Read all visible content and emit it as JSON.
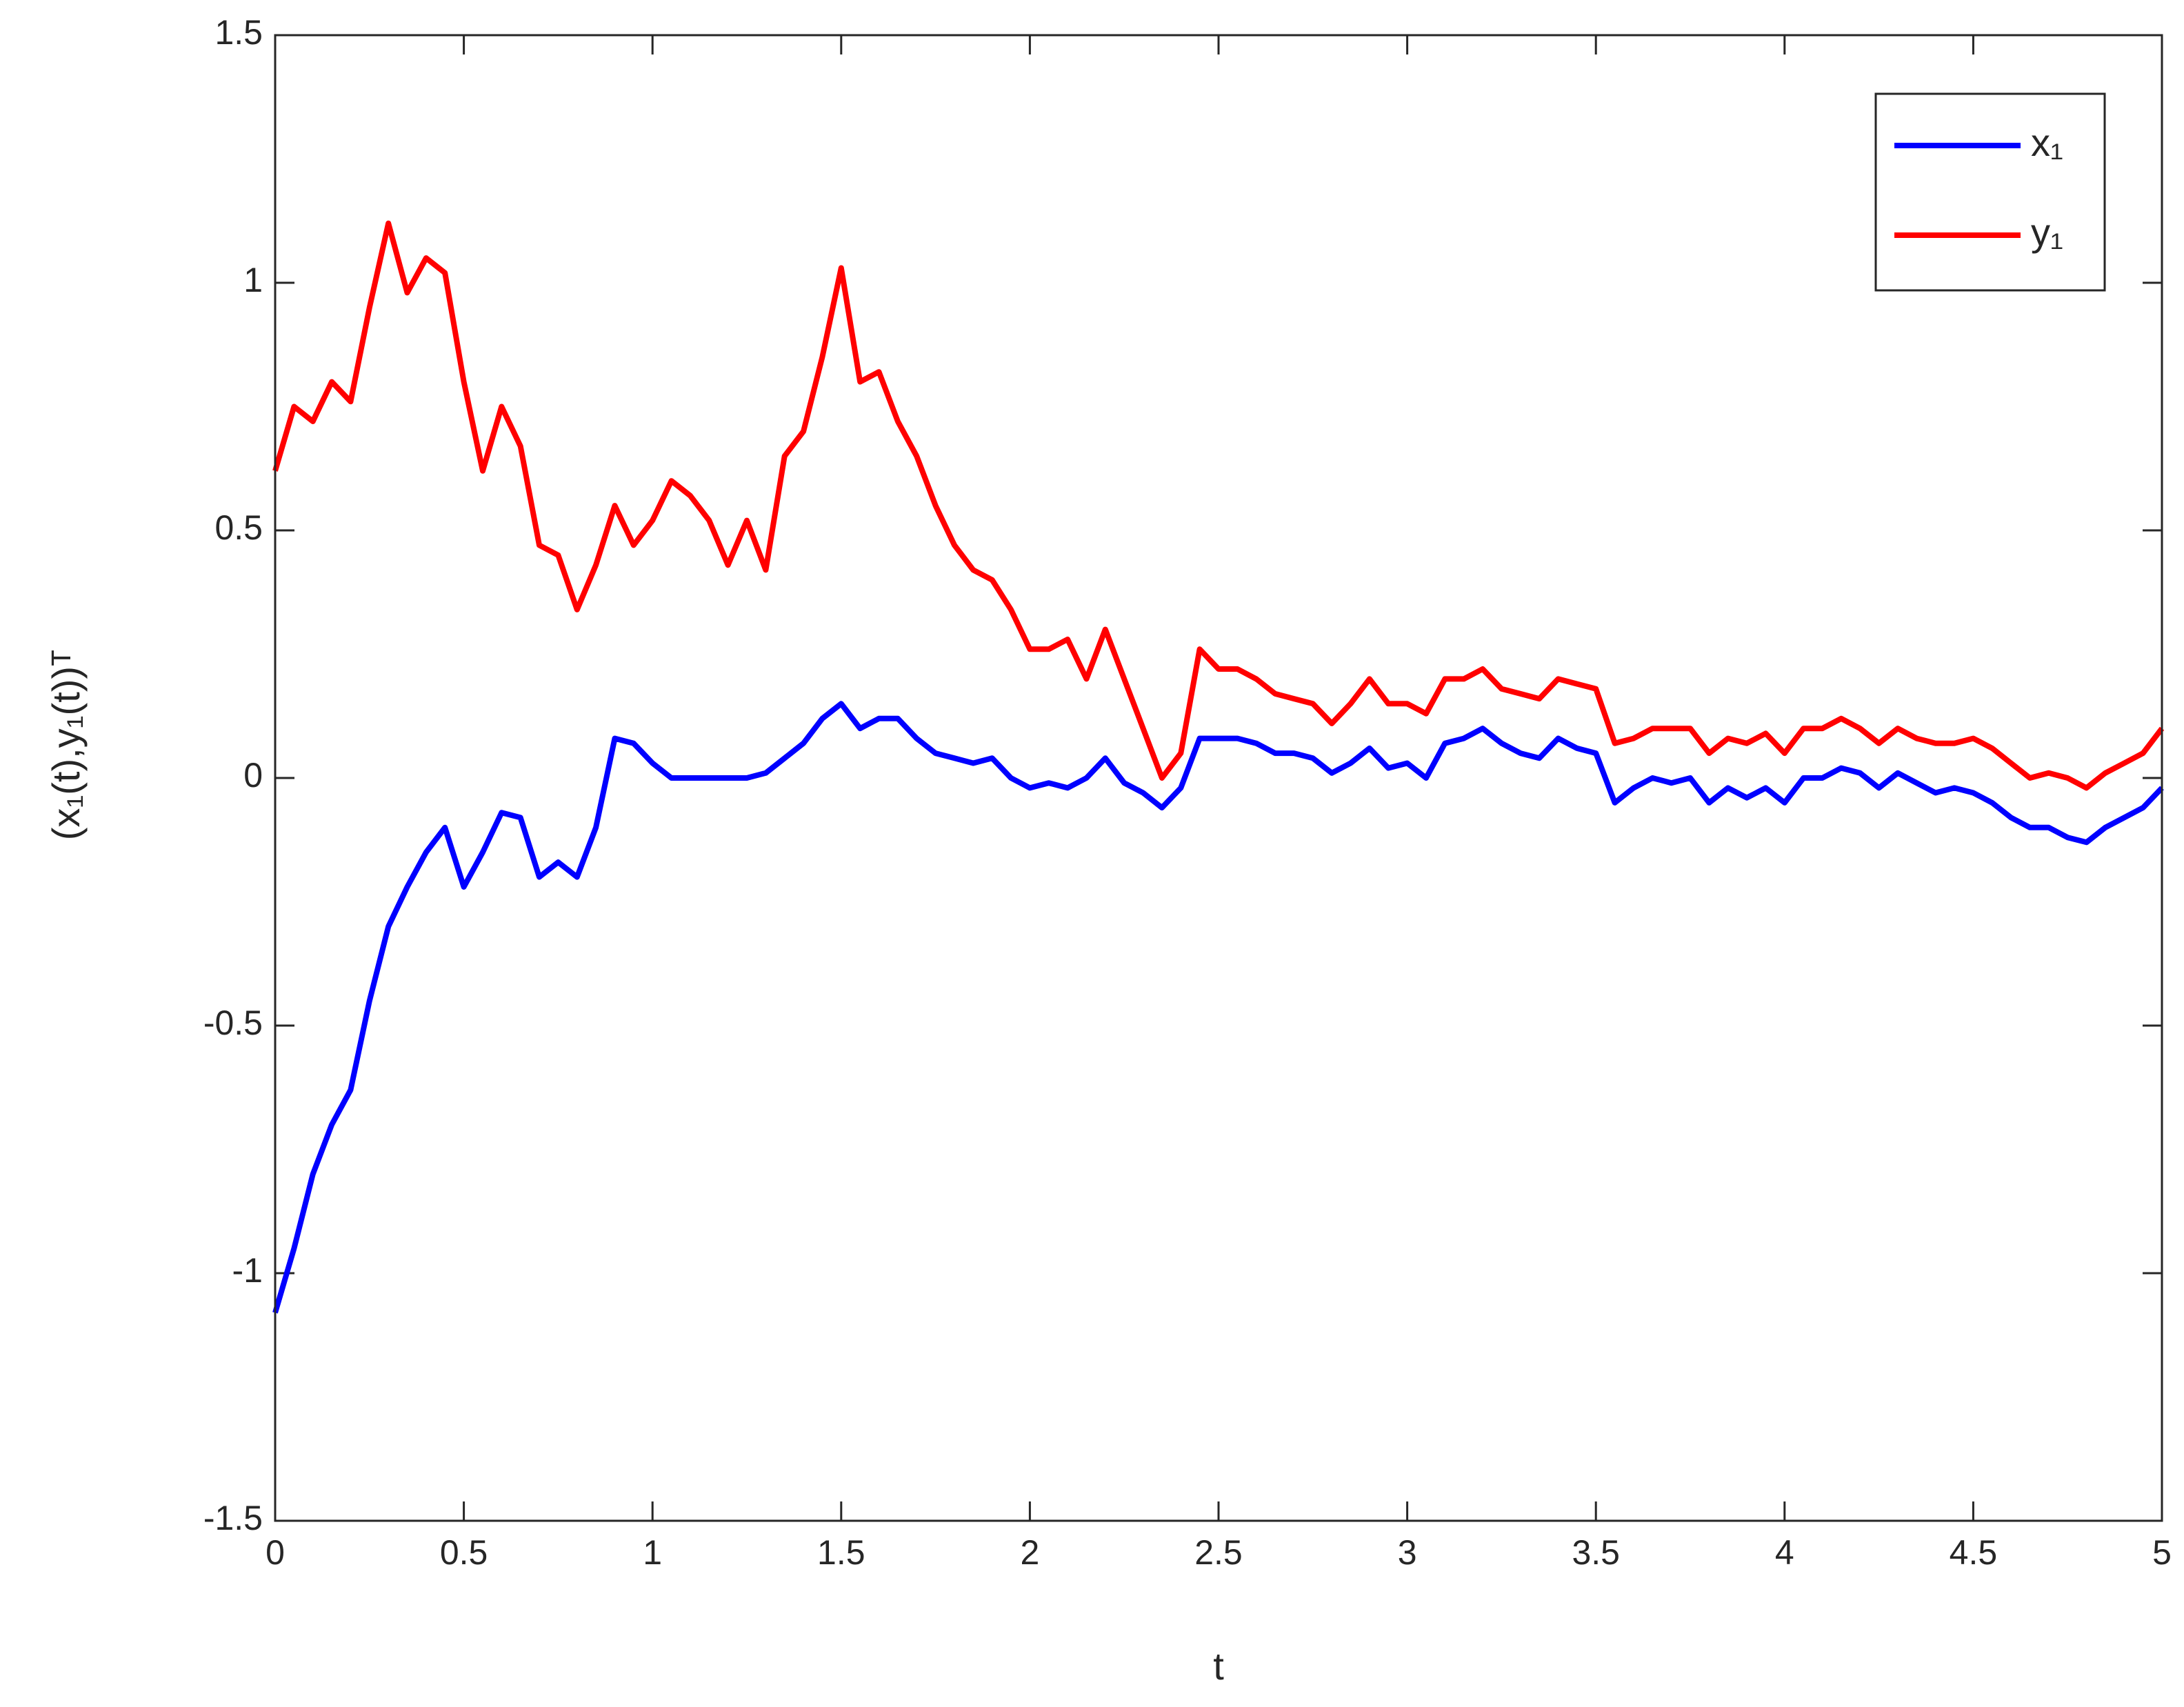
{
  "chart_data": {
    "type": "line",
    "x_label": "t",
    "y_label": "(x₁(t),y₁(t))ᵀ",
    "x": [
      0,
      0.05,
      0.1,
      0.15,
      0.2,
      0.25,
      0.3,
      0.35,
      0.4,
      0.45,
      0.5,
      0.55,
      0.6,
      0.65,
      0.7,
      0.75,
      0.8,
      0.85,
      0.9,
      0.95,
      1,
      1.05,
      1.1,
      1.15,
      1.2,
      1.25,
      1.3,
      1.35,
      1.4,
      1.45,
      1.5,
      1.55,
      1.6,
      1.65,
      1.7,
      1.75,
      1.8,
      1.85,
      1.9,
      1.95,
      2,
      2.05,
      2.1,
      2.15,
      2.2,
      2.25,
      2.3,
      2.35,
      2.4,
      2.45,
      2.5,
      2.55,
      2.6,
      2.65,
      2.7,
      2.75,
      2.8,
      2.85,
      2.9,
      2.95,
      3,
      3.05,
      3.1,
      3.15,
      3.2,
      3.25,
      3.3,
      3.35,
      3.4,
      3.45,
      3.5,
      3.55,
      3.6,
      3.65,
      3.7,
      3.75,
      3.8,
      3.85,
      3.9,
      3.95,
      4,
      4.05,
      4.1,
      4.15,
      4.2,
      4.25,
      4.3,
      4.35,
      4.4,
      4.45,
      4.5,
      4.55,
      4.6,
      4.65,
      4.7,
      4.75,
      4.8,
      4.85,
      4.9,
      4.95,
      5
    ],
    "series": [
      {
        "name": "x₁",
        "color": "#0000ff",
        "values": [
          -1.08,
          -0.95,
          -0.8,
          -0.7,
          -0.63,
          -0.45,
          -0.3,
          -0.22,
          -0.15,
          -0.1,
          -0.22,
          -0.15,
          -0.07,
          -0.08,
          -0.2,
          -0.17,
          -0.2,
          -0.1,
          0.08,
          0.07,
          0.03,
          0,
          0,
          0,
          0,
          0,
          0.01,
          0.04,
          0.07,
          0.12,
          0.15,
          0.1,
          0.12,
          0.12,
          0.08,
          0.05,
          0.04,
          0.03,
          0.04,
          0,
          -0.02,
          -0.01,
          -0.02,
          0,
          0.04,
          -0.01,
          -0.03,
          -0.06,
          -0.02,
          0.08,
          0.08,
          0.08,
          0.07,
          0.05,
          0.05,
          0.04,
          0.01,
          0.03,
          0.06,
          0.02,
          0.03,
          0,
          0.07,
          0.08,
          0.1,
          0.07,
          0.05,
          0.04,
          0.08,
          0.06,
          0.05,
          -0.05,
          -0.02,
          0,
          -0.01,
          0,
          -0.05,
          -0.02,
          -0.04,
          -0.02,
          -0.05,
          0,
          0,
          0.02,
          0.01,
          -0.02,
          0.01,
          -0.01,
          -0.03,
          -0.02,
          -0.03,
          -0.05,
          -0.08,
          -0.1,
          -0.1,
          -0.12,
          -0.13,
          -0.1,
          -0.08,
          -0.06,
          -0.02
        ]
      },
      {
        "name": "y₁",
        "color": "#ff0000",
        "values": [
          0.62,
          0.75,
          0.72,
          0.8,
          0.76,
          0.95,
          1.12,
          0.98,
          1.05,
          1.02,
          0.8,
          0.62,
          0.75,
          0.67,
          0.47,
          0.45,
          0.34,
          0.43,
          0.55,
          0.47,
          0.52,
          0.6,
          0.57,
          0.52,
          0.43,
          0.52,
          0.42,
          0.65,
          0.7,
          0.85,
          1.03,
          0.8,
          0.82,
          0.72,
          0.65,
          0.55,
          0.47,
          0.42,
          0.4,
          0.34,
          0.26,
          0.26,
          0.28,
          0.2,
          0.3,
          0.2,
          0.1,
          0,
          0.05,
          0.26,
          0.22,
          0.22,
          0.2,
          0.17,
          0.16,
          0.15,
          0.11,
          0.15,
          0.2,
          0.15,
          0.15,
          0.13,
          0.2,
          0.2,
          0.22,
          0.18,
          0.17,
          0.16,
          0.2,
          0.19,
          0.18,
          0.07,
          0.08,
          0.1,
          0.1,
          0.1,
          0.05,
          0.08,
          0.07,
          0.09,
          0.05,
          0.1,
          0.1,
          0.12,
          0.1,
          0.07,
          0.1,
          0.08,
          0.07,
          0.07,
          0.08,
          0.06,
          0.03,
          0,
          0.01,
          0,
          -0.02,
          0.01,
          0.03,
          0.05,
          0.1
        ]
      }
    ],
    "xlim": [
      0,
      5
    ],
    "xticks": [
      0,
      0.5,
      1,
      1.5,
      2,
      2.5,
      3,
      3.5,
      4,
      4.5,
      5
    ],
    "ylim": [
      -1.5,
      1.5
    ],
    "yticks": [
      -1.5,
      -1,
      -0.5,
      0,
      0.5,
      1,
      1.5
    ],
    "grid": false,
    "legend": "northeast"
  }
}
